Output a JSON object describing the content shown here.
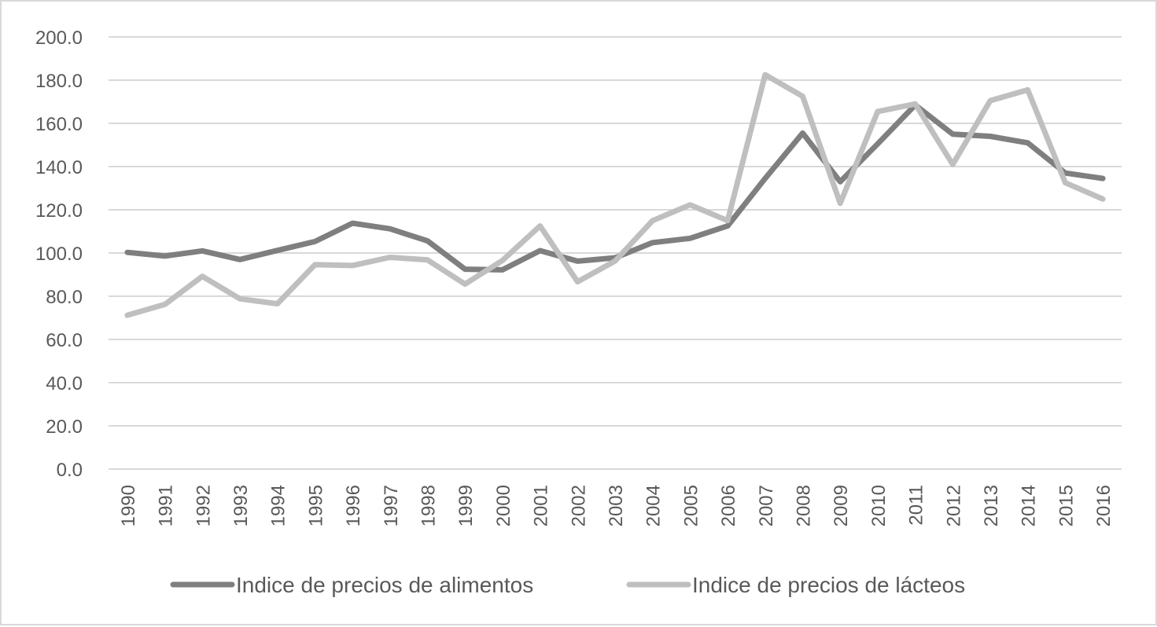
{
  "chart_data": {
    "type": "line",
    "title": "",
    "xlabel": "",
    "ylabel": "",
    "x": [
      "1990",
      "1991",
      "1992",
      "1993",
      "1994",
      "1995",
      "1996",
      "1997",
      "1998",
      "1999",
      "2000",
      "2001",
      "2002",
      "2003",
      "2004",
      "2005",
      "2006",
      "2007",
      "2008",
      "2009",
      "2010",
      "2011",
      "2012",
      "2013",
      "2014",
      "2015",
      "2016"
    ],
    "ylim": [
      0,
      200
    ],
    "y_ticks": [
      "0.0",
      "20.0",
      "40.0",
      "60.0",
      "80.0",
      "100.0",
      "120.0",
      "140.0",
      "160.0",
      "180.0",
      "200.0"
    ],
    "grid": true,
    "legend_position": "bottom",
    "series": [
      {
        "name": "Indice de precios de alimentos",
        "color": "#7f7f7f",
        "values": [
          100.3,
          98.6,
          101.0,
          97.0,
          101.2,
          105.3,
          113.8,
          111.2,
          105.6,
          92.5,
          92.2,
          101.1,
          96.2,
          97.8,
          104.8,
          106.8,
          112.5,
          134.5,
          155.5,
          133.0,
          150.5,
          168.5,
          155.0,
          154.0,
          151.0,
          137.0,
          134.5
        ]
      },
      {
        "name": "Indice de precios de lácteos",
        "color": "#bfbfbf",
        "values": [
          71.2,
          76.2,
          89.2,
          78.8,
          76.5,
          94.6,
          94.2,
          98.0,
          96.8,
          85.6,
          96.6,
          112.5,
          86.7,
          96.3,
          115.0,
          122.3,
          115.0,
          182.5,
          172.5,
          123.0,
          165.5,
          169.0,
          141.0,
          170.5,
          175.5,
          132.5,
          125.0
        ]
      }
    ]
  }
}
